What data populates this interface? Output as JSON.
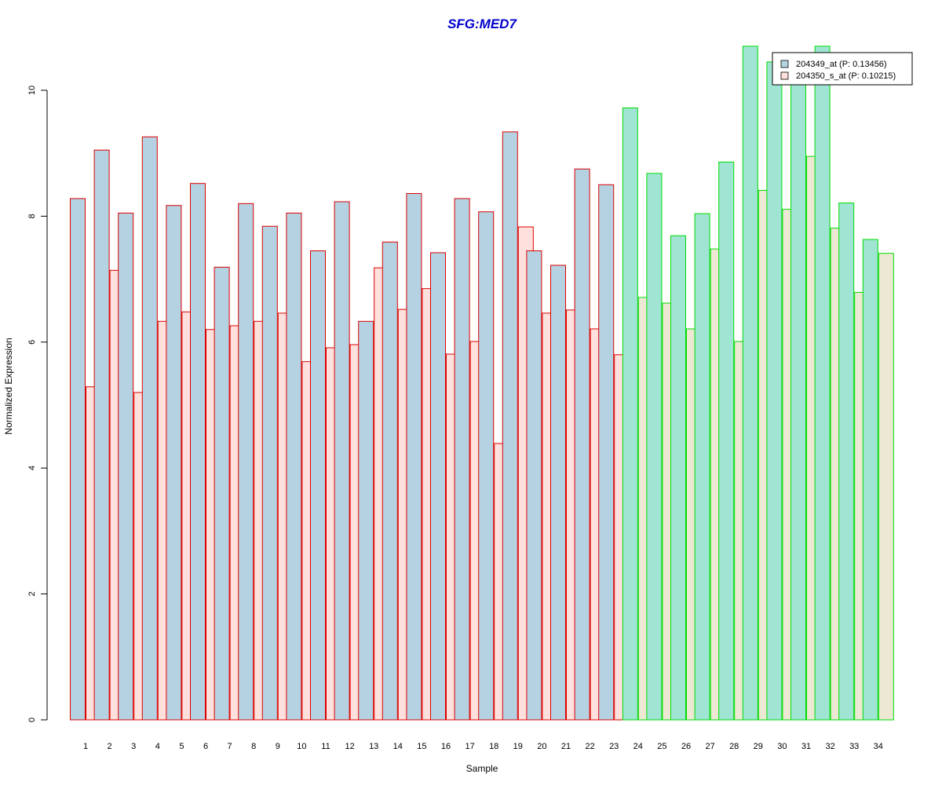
{
  "chart_data": {
    "type": "bar",
    "title": "SFG:MED7",
    "xlabel": "Sample",
    "ylabel": "Normalized Expression",
    "ylim": [
      0,
      10.7
    ],
    "yticks": [
      0,
      2,
      4,
      6,
      8,
      10
    ],
    "grid": false,
    "legend_position": "top-right",
    "categories": [
      "1",
      "2",
      "3",
      "4",
      "5",
      "6",
      "7",
      "8",
      "9",
      "10",
      "11",
      "12",
      "13",
      "14",
      "15",
      "16",
      "17",
      "18",
      "19",
      "20",
      "21",
      "22",
      "23",
      "24",
      "25",
      "26",
      "27",
      "28",
      "29",
      "30",
      "31",
      "32",
      "33",
      "34"
    ],
    "series": [
      {
        "name": "204349_at (P: 0.13456)",
        "values": [
          8.28,
          9.05,
          8.05,
          9.26,
          8.17,
          8.52,
          7.19,
          8.2,
          7.84,
          8.05,
          7.45,
          8.23,
          6.33,
          7.59,
          8.36,
          7.42,
          8.28,
          8.07,
          9.34,
          7.45,
          7.22,
          8.75,
          8.5,
          9.72,
          8.68,
          7.69,
          8.04,
          8.86,
          10.7,
          10.45,
          10.5,
          10.7,
          8.21,
          7.63
        ]
      },
      {
        "name": "204350_s_at (P: 0.10215)",
        "values": [
          5.29,
          7.14,
          5.2,
          6.33,
          6.48,
          6.2,
          6.26,
          6.33,
          6.46,
          5.69,
          5.91,
          5.96,
          7.18,
          6.52,
          6.85,
          5.81,
          6.01,
          4.39,
          7.83,
          6.46,
          6.51,
          6.21,
          5.8,
          6.71,
          6.62,
          6.21,
          7.48,
          6.01,
          8.41,
          8.11,
          8.95,
          7.81,
          6.79,
          7.41
        ]
      }
    ],
    "groups": [
      {
        "from": 1,
        "to": 23,
        "border_color": "#dd0000",
        "fill_a": "#b4d2e2",
        "fill_b": "#ffe0dc"
      },
      {
        "from": 24,
        "to": 34,
        "border_color": "#00dd00",
        "fill_a": "#a0e4d4",
        "fill_b": "#ece8d4"
      }
    ],
    "legend_colors": [
      "#b4d2e2",
      "#ffe0dc"
    ]
  }
}
